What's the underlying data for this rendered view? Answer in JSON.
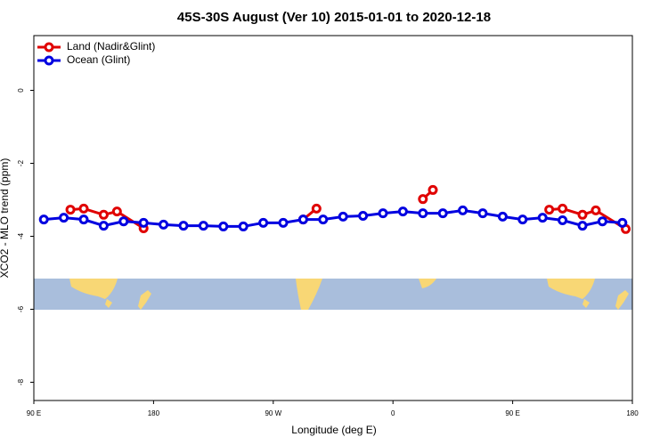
{
  "chart_data": {
    "type": "line",
    "title": "45S-30S August (Ver 10)   2015-01-01 to 2020-12-18",
    "xlabel": "Longitude (deg E)",
    "ylabel": "XCO2 - MLO trend (ppm)",
    "xlim": [
      90,
      540
    ],
    "ylim": [
      -8.5,
      1.5
    ],
    "xticks": [
      {
        "value": 90,
        "label": "90 E"
      },
      {
        "value": 180,
        "label": "180"
      },
      {
        "value": 270,
        "label": "90 W"
      },
      {
        "value": 360,
        "label": "0"
      },
      {
        "value": 450,
        "label": "90 E"
      },
      {
        "value": 540,
        "label": "180"
      }
    ],
    "yticks": [
      -8,
      -6,
      -4,
      -2,
      0
    ],
    "legend": "top-left",
    "series": [
      {
        "name": "Land (Nadir&Glint)",
        "color": "#e00000",
        "x": [
          117.5,
          127.5,
          142.5,
          152.5,
          172.5,
          null,
          292.5,
          302.5,
          null,
          382.5,
          390,
          null,
          477.5,
          487.5,
          502.5,
          512.5,
          535
        ],
        "values": [
          -3.27,
          -3.24,
          -3.41,
          -3.32,
          -3.78,
          null,
          -3.54,
          -3.24,
          null,
          -2.98,
          -2.73,
          null,
          -3.27,
          -3.24,
          -3.41,
          -3.29,
          -3.8
        ]
      },
      {
        "name": "Ocean (Glint)",
        "color": "#0000e0",
        "x": [
          97.5,
          112.5,
          127.5,
          142.5,
          157.5,
          172.5,
          187.5,
          202.5,
          217.5,
          232.5,
          247.5,
          262.5,
          277.5,
          292.5,
          307.5,
          322.5,
          337.5,
          352.5,
          367.5,
          382.5,
          397.5,
          412.5,
          427.5,
          442.5,
          457.5,
          472.5,
          487.5,
          502.5,
          517.5,
          532.5
        ],
        "values": [
          -3.54,
          -3.49,
          -3.54,
          -3.71,
          -3.59,
          -3.63,
          -3.68,
          -3.71,
          -3.71,
          -3.73,
          -3.73,
          -3.63,
          -3.63,
          -3.54,
          -3.54,
          -3.46,
          -3.44,
          -3.37,
          -3.32,
          -3.37,
          -3.37,
          -3.29,
          -3.37,
          -3.46,
          -3.54,
          -3.49,
          -3.56,
          -3.71,
          -3.59,
          -3.63
        ]
      }
    ]
  }
}
